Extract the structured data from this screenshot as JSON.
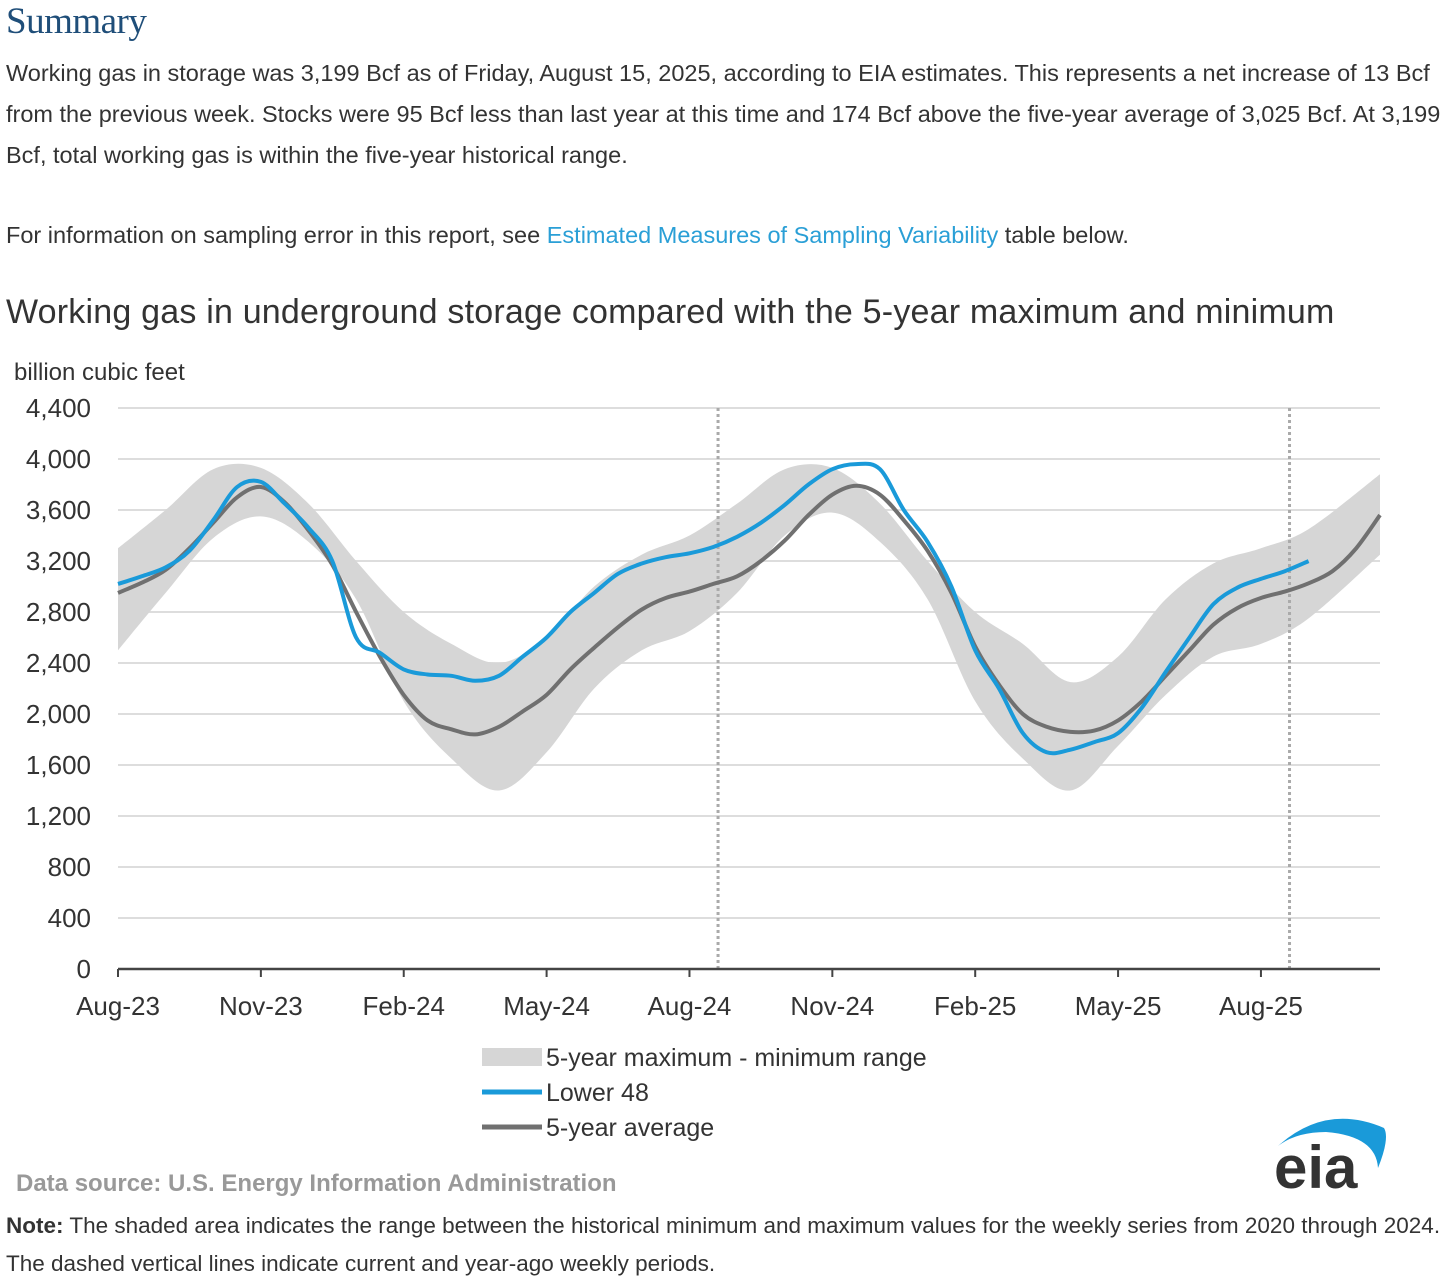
{
  "heading": "Summary",
  "summary_text": "Working gas in storage was 3,199 Bcf as of Friday, August 15, 2025, according to EIA estimates. This represents a net increase of 13 Bcf from the previous week. Stocks were 95 Bcf less than last year at this time and 174 Bcf above the five-year average of 3,025 Bcf. At 3,199 Bcf, total working gas is within the five-year historical range.",
  "sampling": {
    "before": "For information on sampling error in this report, see ",
    "link": "Estimated Measures of Sampling Variability",
    "after": " table below."
  },
  "chart_title": "Working gas in underground storage compared with the 5-year maximum and minimum",
  "source": "Data source:  U.S. Energy Information Administration",
  "note_label": "Note:",
  "note_text": " The shaded area indicates the range between the historical minimum and maximum values for the weekly series from 2020 through 2024. The dashed vertical lines indicate current and year-ago weekly periods.",
  "logo_text": "eia",
  "colors": {
    "range": "#d6d6d6",
    "lower48": "#1a9ad9",
    "average": "#707070",
    "grid": "#dddddd",
    "axis": "#444444"
  },
  "chart_data": {
    "type": "line",
    "title": "Working gas in underground storage compared with the 5-year maximum and minimum",
    "ylabel": "billion cubic feet",
    "ylim": [
      0,
      4400
    ],
    "yticks": [
      0,
      400,
      800,
      1200,
      1600,
      2000,
      2400,
      2800,
      3200,
      3600,
      4000,
      4400
    ],
    "ytick_labels": [
      "0",
      "400",
      "800",
      "1,200",
      "1,600",
      "2,000",
      "2,400",
      "2,800",
      "3,200",
      "3,600",
      "4,000",
      "4,400"
    ],
    "x_unit": "months since Aug-23",
    "xlim": [
      0,
      26.5
    ],
    "xticks": [
      {
        "x": 0,
        "label": "Aug-23"
      },
      {
        "x": 3,
        "label": "Nov-23"
      },
      {
        "x": 6,
        "label": "Feb-24"
      },
      {
        "x": 9,
        "label": "May-24"
      },
      {
        "x": 12,
        "label": "Aug-24"
      },
      {
        "x": 15,
        "label": "Nov-24"
      },
      {
        "x": 18,
        "label": "Feb-25"
      },
      {
        "x": 21,
        "label": "May-25"
      },
      {
        "x": 24,
        "label": "Aug-25"
      }
    ],
    "dashed_lines_x": [
      12.6,
      24.6
    ],
    "legend": [
      "5-year maximum - minimum range",
      "Lower 48",
      "5-year average"
    ],
    "series": [
      {
        "name": "5-year maximum - minimum range",
        "kind": "band",
        "x": [
          0,
          1,
          2,
          3,
          4,
          5,
          6,
          7,
          8,
          9,
          10,
          11,
          12,
          13,
          14,
          15,
          16,
          17,
          18,
          19,
          20,
          21,
          22,
          23,
          24,
          25,
          26.5
        ],
        "max": [
          3300,
          3600,
          3920,
          3930,
          3650,
          3200,
          2800,
          2550,
          2400,
          2600,
          3000,
          3250,
          3400,
          3650,
          3920,
          3930,
          3650,
          3200,
          2800,
          2550,
          2250,
          2450,
          2900,
          3180,
          3300,
          3450,
          3880
        ],
        "min": [
          2500,
          2950,
          3380,
          3550,
          3350,
          2900,
          2100,
          1650,
          1400,
          1700,
          2200,
          2500,
          2650,
          2950,
          3400,
          3580,
          3350,
          2900,
          2100,
          1650,
          1400,
          1750,
          2150,
          2450,
          2550,
          2750,
          3250
        ]
      },
      {
        "name": "Lower 48",
        "kind": "line",
        "x": [
          0,
          0.5,
          1,
          1.5,
          2,
          2.5,
          3,
          3.5,
          4,
          4.5,
          5,
          5.5,
          6,
          6.5,
          7,
          7.5,
          8,
          8.5,
          9,
          9.5,
          10,
          10.5,
          11,
          11.5,
          12,
          12.5,
          13,
          13.5,
          14,
          14.5,
          15,
          15.5,
          16,
          16.5,
          17,
          17.5,
          18,
          18.5,
          19,
          19.5,
          20,
          20.5,
          21,
          21.5,
          22,
          22.5,
          23,
          23.5,
          24,
          24.5,
          25
        ],
        "values": [
          3020,
          3080,
          3150,
          3280,
          3520,
          3780,
          3820,
          3650,
          3460,
          3200,
          2600,
          2480,
          2350,
          2310,
          2300,
          2260,
          2300,
          2450,
          2600,
          2800,
          2950,
          3100,
          3180,
          3230,
          3260,
          3310,
          3390,
          3500,
          3640,
          3800,
          3920,
          3960,
          3920,
          3600,
          3350,
          3000,
          2500,
          2200,
          1850,
          1700,
          1720,
          1780,
          1850,
          2050,
          2330,
          2600,
          2860,
          2990,
          3060,
          3120,
          3199
        ]
      },
      {
        "name": "5-year average",
        "kind": "line",
        "x": [
          0,
          0.5,
          1,
          1.5,
          2,
          2.5,
          3,
          3.5,
          4,
          4.5,
          5,
          5.5,
          6,
          6.5,
          7,
          7.5,
          8,
          8.5,
          9,
          9.5,
          10,
          10.5,
          11,
          11.5,
          12,
          12.5,
          13,
          13.5,
          14,
          14.5,
          15,
          15.5,
          16,
          16.5,
          17,
          17.5,
          18,
          18.5,
          19,
          19.5,
          20,
          20.5,
          21,
          21.5,
          22,
          22.5,
          23,
          23.5,
          24,
          24.5,
          25,
          25.5,
          26,
          26.5
        ],
        "values": [
          2950,
          3030,
          3130,
          3300,
          3500,
          3700,
          3780,
          3660,
          3440,
          3170,
          2800,
          2450,
          2150,
          1950,
          1880,
          1840,
          1900,
          2020,
          2150,
          2350,
          2520,
          2680,
          2820,
          2910,
          2960,
          3020,
          3080,
          3200,
          3360,
          3560,
          3720,
          3790,
          3720,
          3520,
          3280,
          2950,
          2530,
          2230,
          2000,
          1900,
          1860,
          1870,
          1950,
          2100,
          2300,
          2500,
          2700,
          2830,
          2910,
          2960,
          3025,
          3120,
          3300,
          3560
        ]
      }
    ]
  }
}
